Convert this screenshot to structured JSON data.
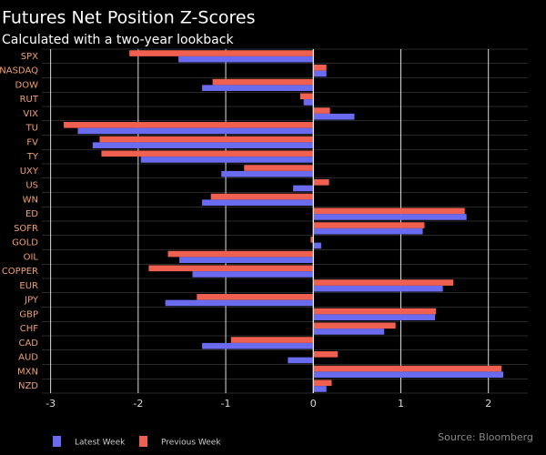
{
  "chart_data": {
    "type": "hbar",
    "title": "Futures Net Position Z-Scores",
    "subtitle": "Calculated with a two-year lookback",
    "source": "Source: Bloomberg",
    "categories": [
      "SPX",
      "NASDAQ",
      "DOW",
      "RUT",
      "VIX",
      "TU",
      "FV",
      "TY",
      "UXY",
      "US",
      "WN",
      "ED",
      "SOFR",
      "GOLD",
      "OIL",
      "COPPER",
      "EUR",
      "JPY",
      "GBP",
      "CHF",
      "CAD",
      "AUD",
      "MXN",
      "NZD"
    ],
    "series": [
      {
        "name": "Latest Week",
        "color": "#6b6bf0",
        "values": [
          -1.54,
          0.15,
          -1.27,
          -0.11,
          0.47,
          -2.69,
          -2.52,
          -1.97,
          -1.05,
          -0.23,
          -1.27,
          1.75,
          1.25,
          0.09,
          -1.53,
          -1.38,
          1.48,
          -1.69,
          1.39,
          0.81,
          -1.27,
          -0.29,
          2.17,
          0.15
        ]
      },
      {
        "name": "Previous Week",
        "color": "#f06050",
        "values": [
          -2.1,
          0.15,
          -1.15,
          -0.15,
          0.19,
          -2.85,
          -2.44,
          -2.42,
          -0.79,
          0.18,
          -1.17,
          1.73,
          1.27,
          -0.03,
          -1.66,
          -1.88,
          1.6,
          -1.33,
          1.4,
          0.94,
          -0.94,
          0.28,
          2.15,
          0.21
        ]
      }
    ],
    "xlim": [
      -3.1,
      2.45
    ],
    "xticks": [
      -3,
      -2,
      -1,
      0,
      1,
      2
    ],
    "grid": true
  }
}
